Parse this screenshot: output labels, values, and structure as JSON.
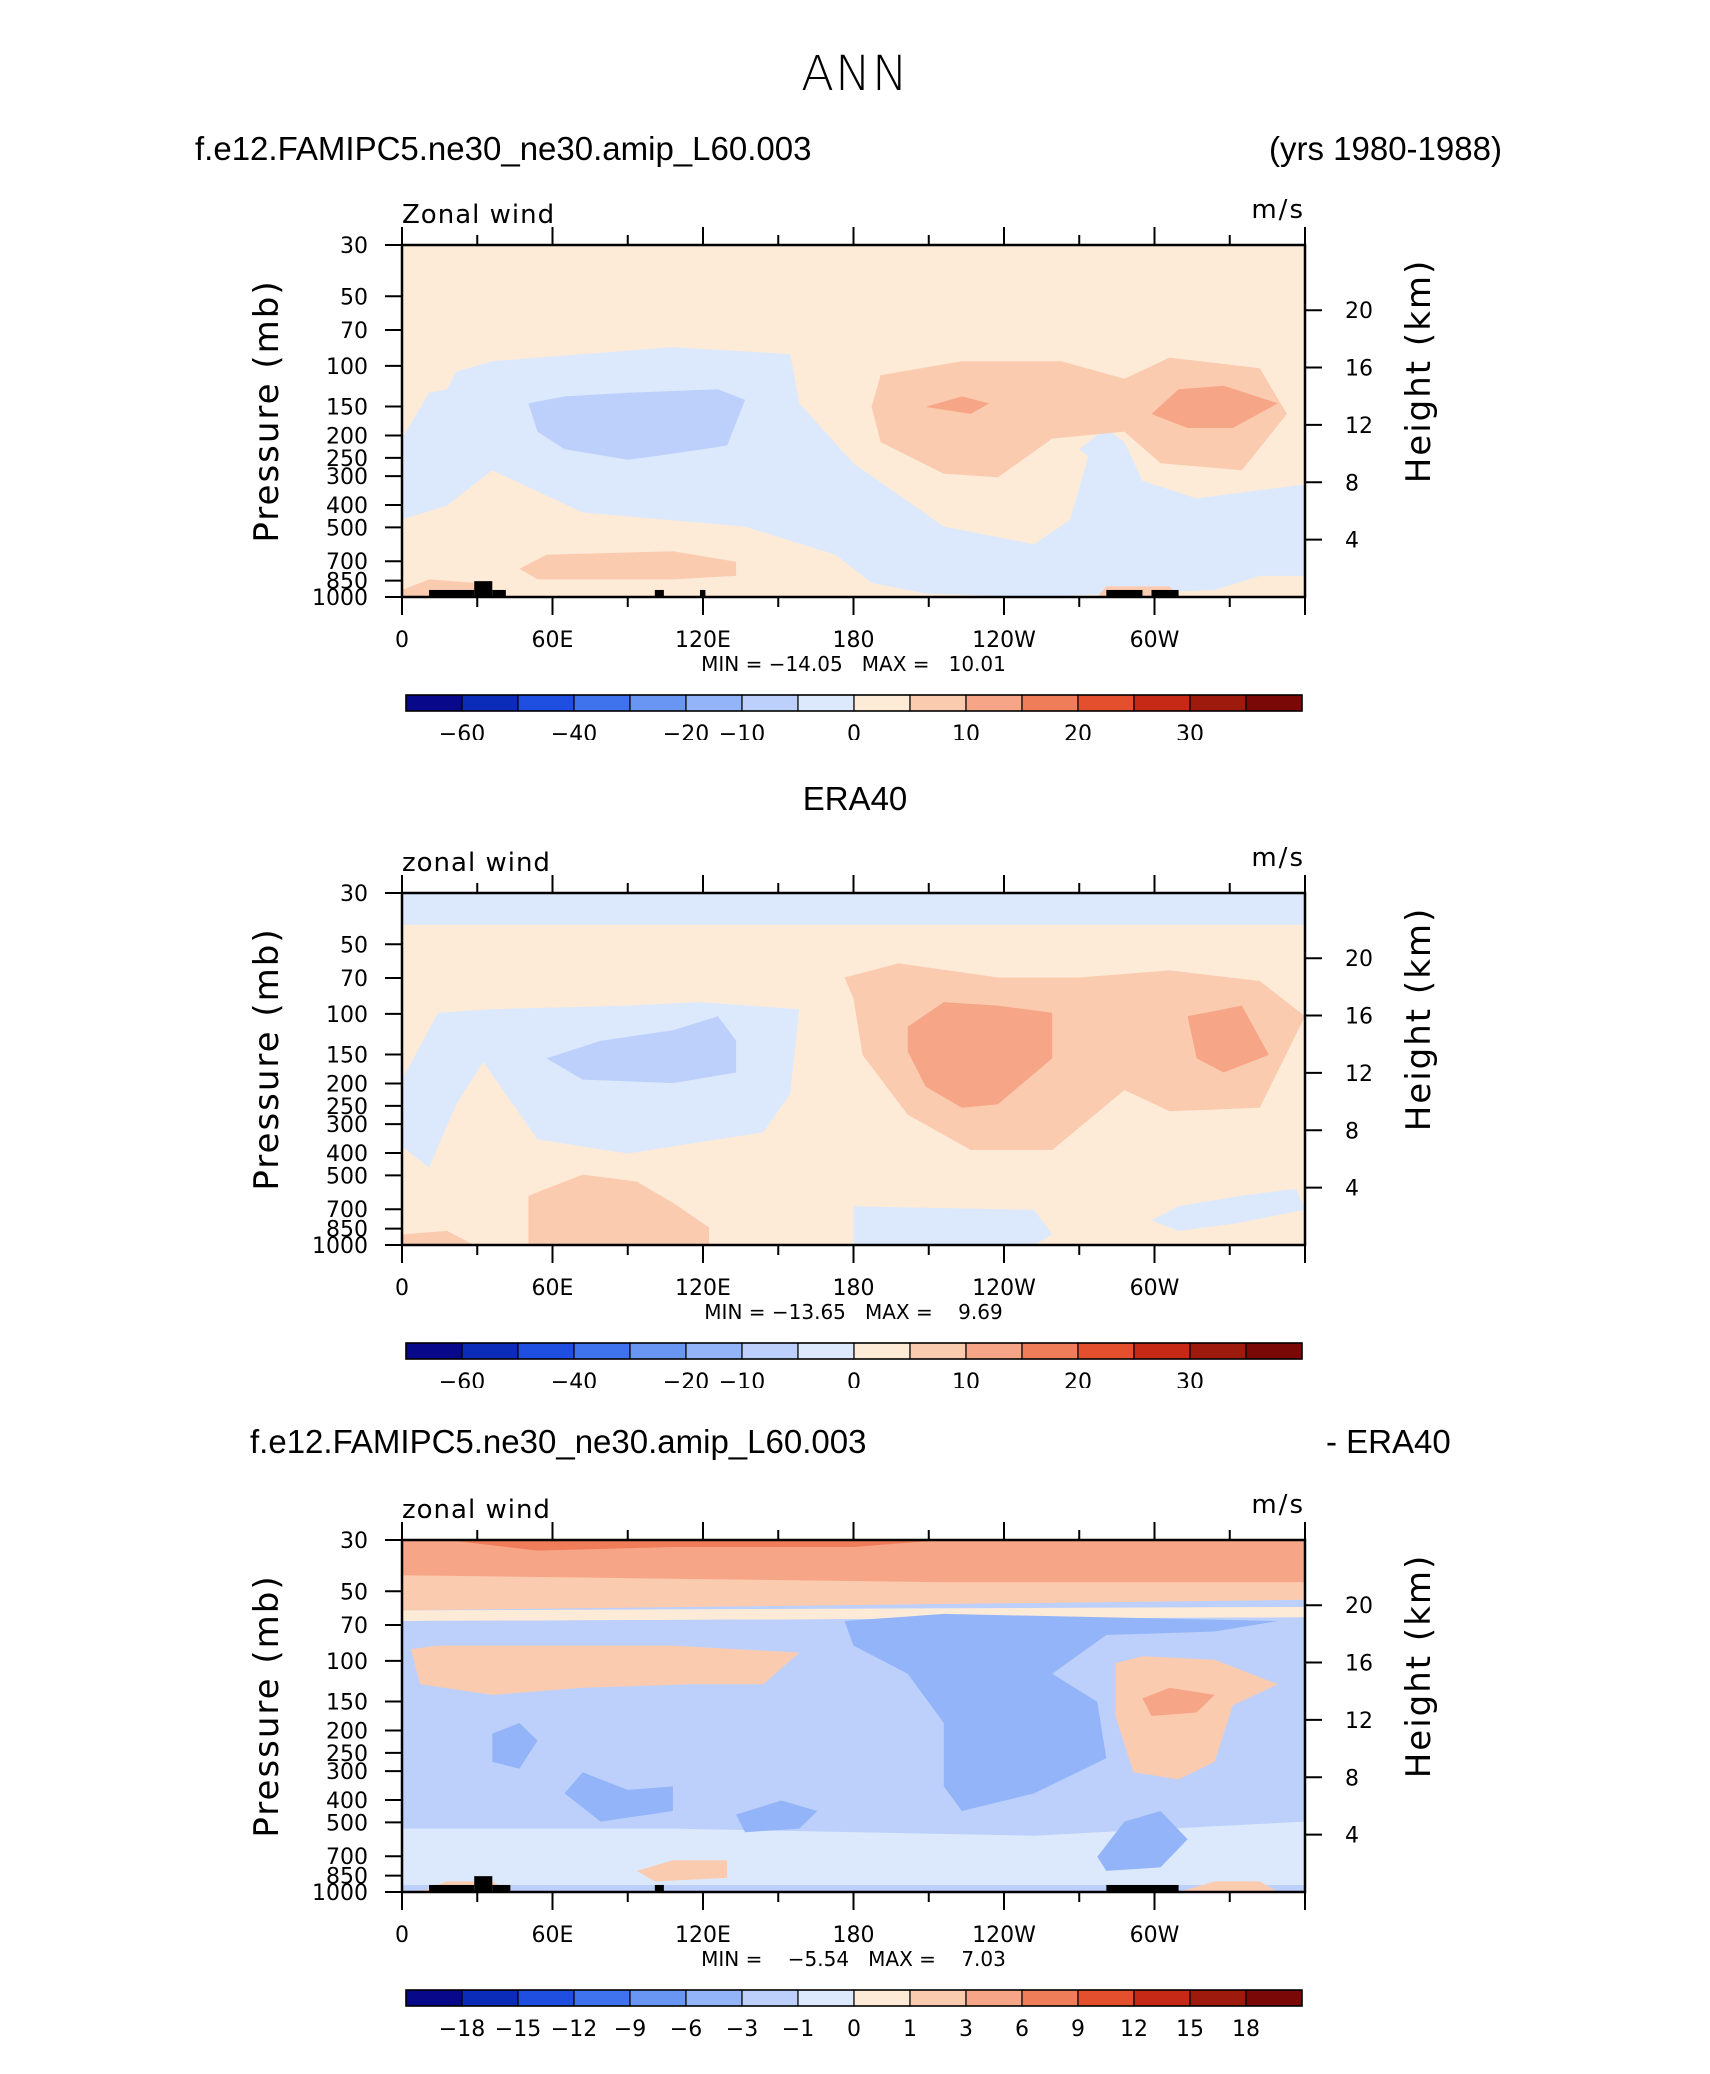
{
  "main_title": "ANN",
  "headers": {
    "p1_left": "f.e12.FAMIPC5.ne30_ne30.amip_L60.003",
    "p1_right": "(yrs 1980-1988)",
    "p2_center": "ERA40",
    "p3_left": "f.e12.FAMIPC5.ne30_ne30.amip_L60.003",
    "p3_right": "- ERA40"
  },
  "chart_data": [
    {
      "type": "heatmap",
      "title": "Zonal wind",
      "units": "m/s",
      "ylabel": "Pressure (mb)",
      "ylabel_right": "Height (km)",
      "x_ticks": [
        "0",
        "60E",
        "120E",
        "180",
        "120W",
        "60W"
      ],
      "y_ticks": [
        "30",
        "50",
        "70",
        "100",
        "150",
        "200",
        "250",
        "300",
        "400",
        "500",
        "700",
        "850",
        "1000"
      ],
      "y_right_ticks": [
        "20",
        "16",
        "12",
        "8",
        "4"
      ],
      "stats": "MIN = −14.05   MAX =   10.01",
      "min": -14.05,
      "max": 10.01,
      "colorbar_labels": [
        "−60",
        "−40",
        "−20",
        "−10",
        "0",
        "10",
        "20",
        "30"
      ]
    },
    {
      "type": "heatmap",
      "title": "zonal wind",
      "units": "m/s",
      "ylabel": "Pressure (mb)",
      "ylabel_right": "Height (km)",
      "x_ticks": [
        "0",
        "60E",
        "120E",
        "180",
        "120W",
        "60W"
      ],
      "y_ticks": [
        "30",
        "50",
        "70",
        "100",
        "150",
        "200",
        "250",
        "300",
        "400",
        "500",
        "700",
        "850",
        "1000"
      ],
      "y_right_ticks": [
        "20",
        "16",
        "12",
        "8",
        "4"
      ],
      "stats": "MIN = −13.65   MAX =    9.69",
      "min": -13.65,
      "max": 9.69,
      "colorbar_labels": [
        "−60",
        "−40",
        "−20",
        "−10",
        "0",
        "10",
        "20",
        "30"
      ]
    },
    {
      "type": "heatmap",
      "title": "zonal wind",
      "units": "m/s",
      "ylabel": "Pressure (mb)",
      "ylabel_right": "Height (km)",
      "x_ticks": [
        "0",
        "60E",
        "120E",
        "180",
        "120W",
        "60W"
      ],
      "y_ticks": [
        "30",
        "50",
        "70",
        "100",
        "150",
        "200",
        "250",
        "300",
        "400",
        "500",
        "700",
        "850",
        "1000"
      ],
      "y_right_ticks": [
        "20",
        "16",
        "12",
        "8",
        "4"
      ],
      "stats": "MIN =    −5.54   MAX =    7.03",
      "min": -5.54,
      "max": 7.03,
      "colorbar_labels": [
        "−18",
        "−15",
        "−12",
        "−9",
        "−6",
        "−3",
        "−1",
        "0",
        "1",
        "3",
        "6",
        "9",
        "12",
        "15",
        "18"
      ]
    }
  ],
  "palette": [
    "#08088a",
    "#0b2cb8",
    "#1f4fe0",
    "#3f73ee",
    "#6a96f3",
    "#93b4f8",
    "#bcd0fb",
    "#dce9fc",
    "#fdebd8",
    "#fbcbb0",
    "#f7a587",
    "#f07d5a",
    "#e4502d",
    "#c62a17",
    "#9e1a0c",
    "#7a0806"
  ]
}
